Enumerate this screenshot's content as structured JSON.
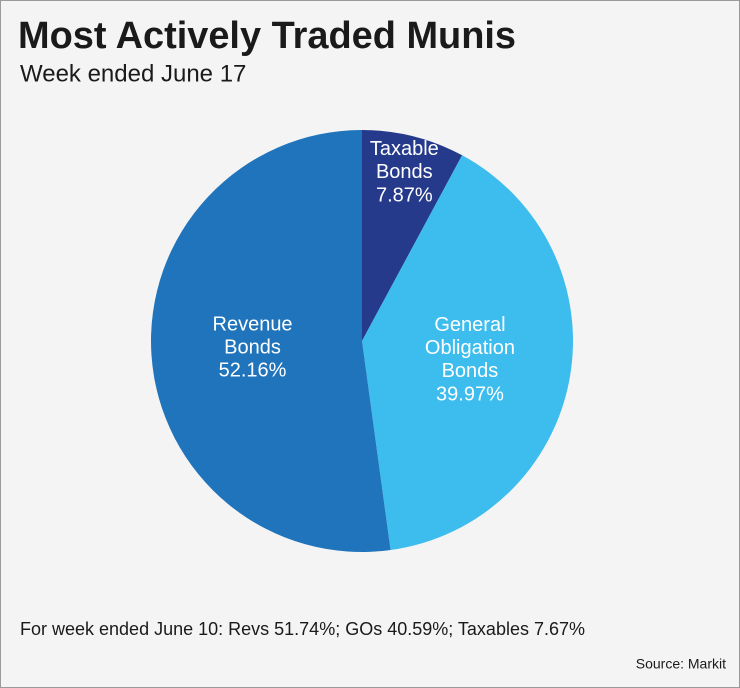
{
  "chart_data": {
    "type": "pie",
    "title": "Most Actively Traded Munis",
    "subtitle": "Week ended June 17",
    "categories": [
      "Taxable Bonds",
      "General Obligation Bonds",
      "Revenue Bonds"
    ],
    "values": [
      7.87,
      39.97,
      52.16
    ],
    "value_labels": [
      "7.87%",
      "39.97%",
      "52.16%"
    ],
    "colors": [
      "#263a8c",
      "#3dbcee",
      "#1f74bb"
    ],
    "note": "For week ended June 10: Revs 51.74%; GOs 40.59%; Taxables 7.67%",
    "source": "Source: Markit"
  }
}
